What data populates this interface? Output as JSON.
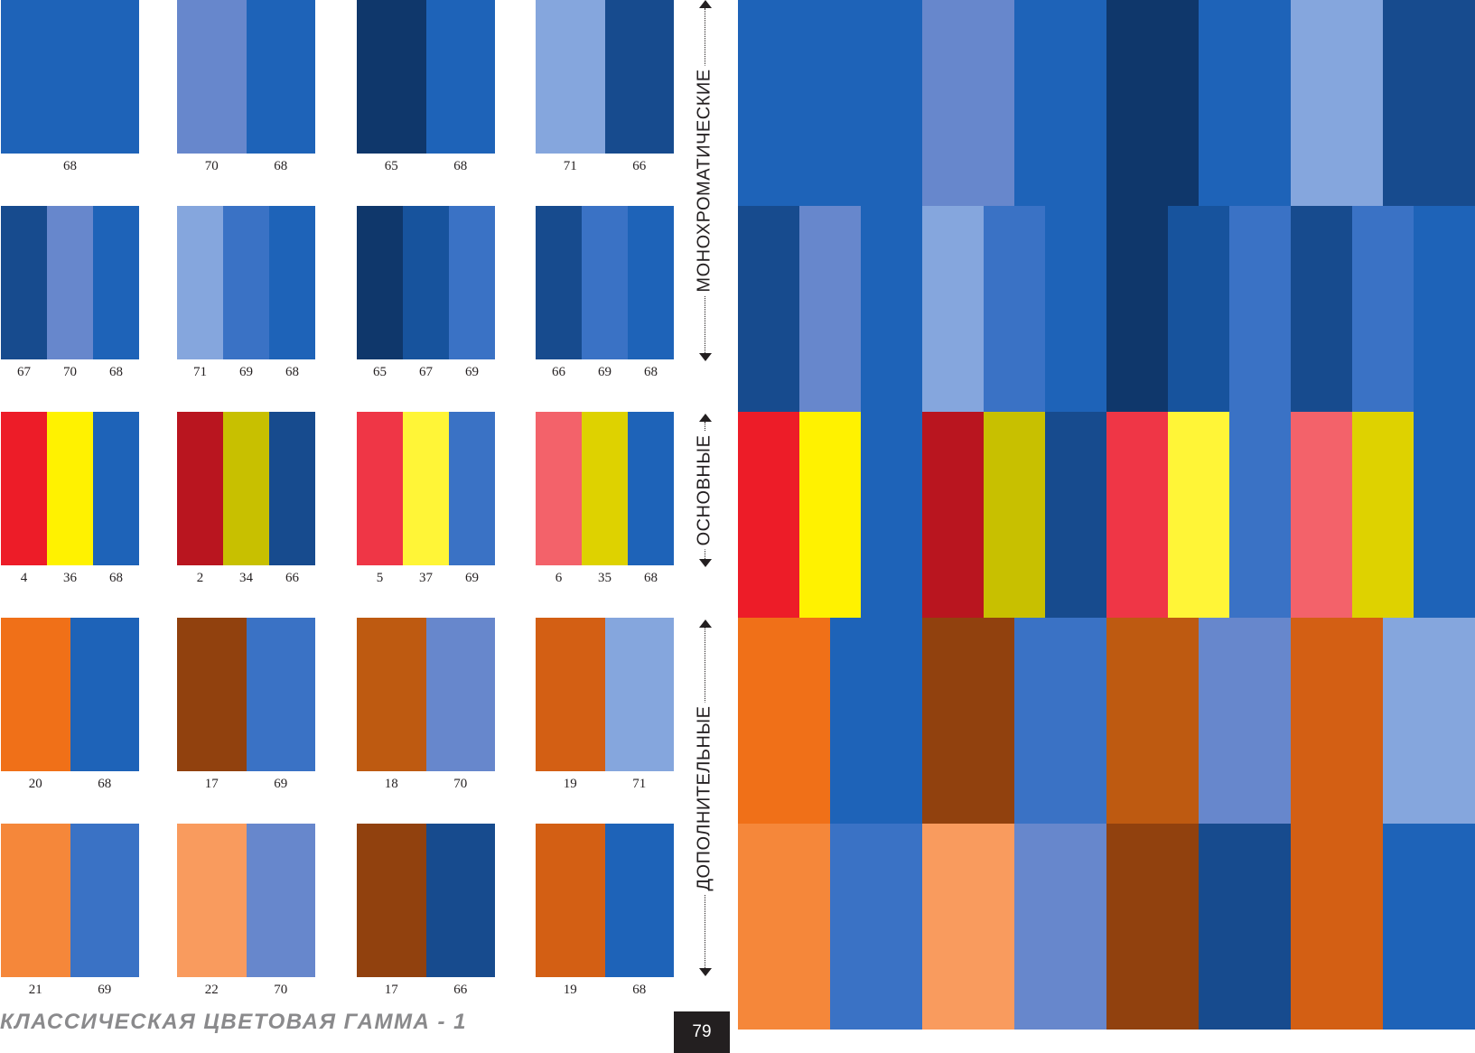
{
  "swatches": [
    [
      {
        "colors": [
          "#1e63b8"
        ],
        "labels": [
          "68"
        ]
      },
      {
        "colors": [
          "#6787cc",
          "#1e63b8"
        ],
        "labels": [
          "70",
          "68"
        ]
      },
      {
        "colors": [
          "#0f376b",
          "#1e63b8"
        ],
        "labels": [
          "65",
          "68"
        ]
      },
      {
        "colors": [
          "#85a6dd",
          "#174b8e"
        ],
        "labels": [
          "71",
          "66"
        ]
      }
    ],
    [
      {
        "colors": [
          "#174b8e",
          "#6787cc",
          "#1e63b8"
        ],
        "labels": [
          "67",
          "70",
          "68"
        ]
      },
      {
        "colors": [
          "#85a6dd",
          "#3a72c5",
          "#1e63b8"
        ],
        "labels": [
          "71",
          "69",
          "68"
        ]
      },
      {
        "colors": [
          "#0f376b",
          "#17539d",
          "#3a72c5"
        ],
        "labels": [
          "65",
          "67",
          "69"
        ]
      },
      {
        "colors": [
          "#174b8e",
          "#3a72c5",
          "#1e63b8"
        ],
        "labels": [
          "66",
          "69",
          "68"
        ]
      }
    ],
    [
      {
        "colors": [
          "#ed1c28",
          "#fff200",
          "#1e63b8"
        ],
        "labels": [
          "4",
          "36",
          "68"
        ]
      },
      {
        "colors": [
          "#b9151f",
          "#c8c000",
          "#174b8e"
        ],
        "labels": [
          "2",
          "34",
          "66"
        ]
      },
      {
        "colors": [
          "#ef3646",
          "#fff537",
          "#3a72c5"
        ],
        "labels": [
          "5",
          "37",
          "69"
        ]
      },
      {
        "colors": [
          "#f3626a",
          "#ded200",
          "#1e63b8"
        ],
        "labels": [
          "6",
          "35",
          "68"
        ]
      }
    ],
    [
      {
        "colors": [
          "#f07018",
          "#1e63b8"
        ],
        "labels": [
          "20",
          "68"
        ]
      },
      {
        "colors": [
          "#91410e",
          "#3a72c5"
        ],
        "labels": [
          "17",
          "69"
        ]
      },
      {
        "colors": [
          "#be5a11",
          "#6787cc"
        ],
        "labels": [
          "18",
          "70"
        ]
      },
      {
        "colors": [
          "#d35f14",
          "#85a6dd"
        ],
        "labels": [
          "19",
          "71"
        ]
      }
    ],
    [
      {
        "colors": [
          "#f5873a",
          "#3a72c5"
        ],
        "labels": [
          "21",
          "69"
        ]
      },
      {
        "colors": [
          "#f99b5e",
          "#6787cc"
        ],
        "labels": [
          "22",
          "70"
        ]
      },
      {
        "colors": [
          "#91410e",
          "#174b8e"
        ],
        "labels": [
          "17",
          "66"
        ]
      },
      {
        "colors": [
          "#d35f14",
          "#1e63b8"
        ],
        "labels": [
          "19",
          "68"
        ]
      }
    ]
  ],
  "big_panel": [
    [
      {
        "color": "#1e63b8",
        "w": 2
      },
      {
        "color": "#6787cc",
        "w": 1
      },
      {
        "color": "#1e63b8",
        "w": 1
      },
      {
        "color": "#0f376b",
        "w": 1
      },
      {
        "color": "#1e63b8",
        "w": 1
      },
      {
        "color": "#85a6dd",
        "w": 1
      },
      {
        "color": "#174b8e",
        "w": 1
      }
    ],
    [
      {
        "color": "#174b8e",
        "w": 2
      },
      {
        "color": "#6787cc",
        "w": 2
      },
      {
        "color": "#1e63b8",
        "w": 2
      },
      {
        "color": "#85a6dd",
        "w": 2
      },
      {
        "color": "#3a72c5",
        "w": 2
      },
      {
        "color": "#1e63b8",
        "w": 2
      },
      {
        "color": "#0f376b",
        "w": 2
      },
      {
        "color": "#17539d",
        "w": 2
      },
      {
        "color": "#3a72c5",
        "w": 2
      },
      {
        "color": "#174b8e",
        "w": 2
      },
      {
        "color": "#3a72c5",
        "w": 2
      },
      {
        "color": "#1e63b8",
        "w": 2
      }
    ],
    [
      {
        "color": "#ed1c28",
        "w": 2
      },
      {
        "color": "#fff200",
        "w": 2
      },
      {
        "color": "#1e63b8",
        "w": 2
      },
      {
        "color": "#b9151f",
        "w": 2
      },
      {
        "color": "#c8c000",
        "w": 2
      },
      {
        "color": "#174b8e",
        "w": 2
      },
      {
        "color": "#ef3646",
        "w": 2
      },
      {
        "color": "#fff537",
        "w": 2
      },
      {
        "color": "#3a72c5",
        "w": 2
      },
      {
        "color": "#f3626a",
        "w": 2
      },
      {
        "color": "#ded200",
        "w": 2
      },
      {
        "color": "#1e63b8",
        "w": 2
      }
    ],
    [
      {
        "color": "#f07018",
        "w": 1
      },
      {
        "color": "#1e63b8",
        "w": 1
      },
      {
        "color": "#91410e",
        "w": 1
      },
      {
        "color": "#3a72c5",
        "w": 1
      },
      {
        "color": "#be5a11",
        "w": 1
      },
      {
        "color": "#6787cc",
        "w": 1
      },
      {
        "color": "#d35f14",
        "w": 1
      },
      {
        "color": "#85a6dd",
        "w": 1
      }
    ],
    [
      {
        "color": "#f5873a",
        "w": 1
      },
      {
        "color": "#3a72c5",
        "w": 1
      },
      {
        "color": "#f99b5e",
        "w": 1
      },
      {
        "color": "#6787cc",
        "w": 1
      },
      {
        "color": "#91410e",
        "w": 1
      },
      {
        "color": "#174b8e",
        "w": 1
      },
      {
        "color": "#d35f14",
        "w": 1
      },
      {
        "color": "#1e63b8",
        "w": 1
      }
    ]
  ],
  "side_labels": {
    "monochromatic": "МОНОХРОМАТИЧЕСКИЕ",
    "primary": "ОСНОВНЫЕ",
    "complementary": "ДОПОЛНИТЕЛЬНЫЕ"
  },
  "footer": {
    "title": "КЛАССИЧЕСКАЯ ЦВЕТОВАЯ ГАММА - 1",
    "page_number": "79"
  }
}
